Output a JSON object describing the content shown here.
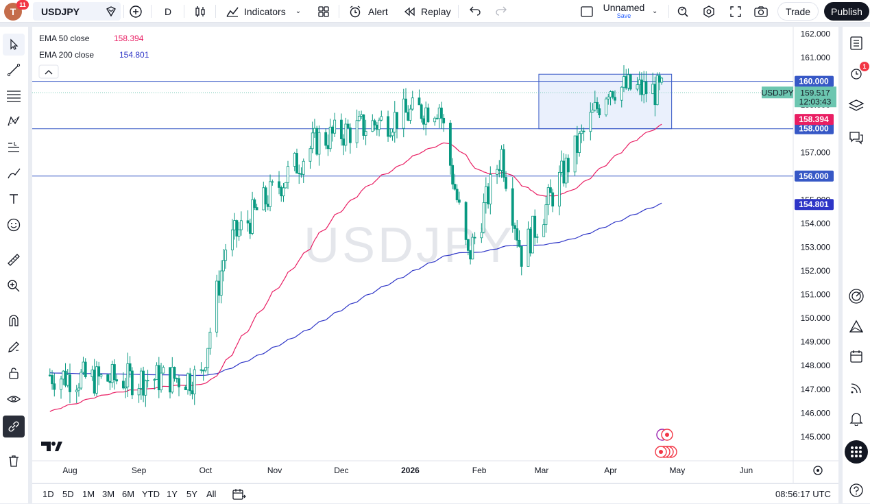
{
  "topbar": {
    "avatar_letter": "T",
    "avatar_badge": "11",
    "symbol": "USDJPY",
    "interval": "D",
    "indicators_label": "Indicators",
    "alert_label": "Alert",
    "replay_label": "Replay",
    "layout_name": "Unnamed",
    "layout_save": "Save",
    "trade_label": "Trade",
    "publish_label": "Publish"
  },
  "legend": {
    "ema50_label": "EMA 50 close",
    "ema50_value": "158.394",
    "ema200_label": "EMA 200 close",
    "ema200_value": "154.801"
  },
  "watermark": "USDJPY",
  "price_axis": {
    "ticks": [
      "162.000",
      "161.000",
      "160.000",
      "159.000",
      "158.000",
      "157.000",
      "156.000",
      "155.000",
      "154.000",
      "153.000",
      "152.000",
      "151.000",
      "150.000",
      "149.000",
      "148.000",
      "147.000",
      "146.000",
      "145.000"
    ],
    "labels": {
      "line160": "160.000",
      "symbol": "USDJPY",
      "last_price": "159.517",
      "countdown": "12:03:43",
      "ema50": "158.394",
      "line158": "158.000",
      "line156": "156.000",
      "ema200": "154.801"
    }
  },
  "time_axis": {
    "labels": [
      "Aug",
      "Sep",
      "Oct",
      "Nov",
      "Dec",
      "2026",
      "Feb",
      "Mar",
      "Apr",
      "May",
      "Jun"
    ]
  },
  "bottombar": {
    "ranges": [
      "1D",
      "5D",
      "1M",
      "3M",
      "6M",
      "YTD",
      "1Y",
      "5Y",
      "All"
    ],
    "clock": "08:56:17 UTC"
  },
  "rightbar": {
    "alerts_badge": "1"
  },
  "colors": {
    "up": "#089981",
    "down": "#089981",
    "ema50": "#e91e63",
    "ema200": "#2e35c7",
    "hline": "#3758c6",
    "last_price_bg": "#6cc6b0",
    "rect_fill": "#e3ebfb",
    "rect_stroke": "#3758c6"
  },
  "chart_data": {
    "type": "candlestick",
    "symbol": "USDJPY",
    "interval": "D",
    "ylim": [
      144.5,
      162.5
    ],
    "last_price": 159.517,
    "horizontal_levels": [
      160.0,
      158.0,
      156.0
    ],
    "box": {
      "x_start": "2026-03-01",
      "x_end": "2026-04-26",
      "y_low": 158.0,
      "y_high": 160.3
    },
    "ema50_last": 158.394,
    "ema200_last": 154.801,
    "segments": [
      {
        "from": "2025-07-23",
        "to": "2025-08-15",
        "price_start": 147.6,
        "price_end": 147.4
      },
      {
        "from": "2025-08-15",
        "to": "2025-09-29",
        "price_start": 147.4,
        "price_end": 147.5
      },
      {
        "from": "2025-09-29",
        "to": "2025-10-10",
        "price_start": 147.5,
        "price_end": 153.0
      },
      {
        "from": "2025-10-10",
        "to": "2025-11-20",
        "price_start": 153.0,
        "price_end": 157.5
      },
      {
        "from": "2025-11-20",
        "to": "2026-01-14",
        "price_start": 157.5,
        "price_end": 159.0
      },
      {
        "from": "2026-01-14",
        "to": "2026-01-27",
        "price_start": 159.0,
        "price_end": 152.5
      },
      {
        "from": "2026-01-27",
        "to": "2026-02-11",
        "price_start": 152.5,
        "price_end": 157.0
      },
      {
        "from": "2026-02-11",
        "to": "2026-02-20",
        "price_start": 157.0,
        "price_end": 152.7
      },
      {
        "from": "2026-02-20",
        "to": "2026-03-31",
        "price_start": 152.7,
        "price_end": 159.8
      },
      {
        "from": "2026-03-31",
        "to": "2026-04-27",
        "price_start": 159.8,
        "price_end": 159.517
      }
    ]
  }
}
